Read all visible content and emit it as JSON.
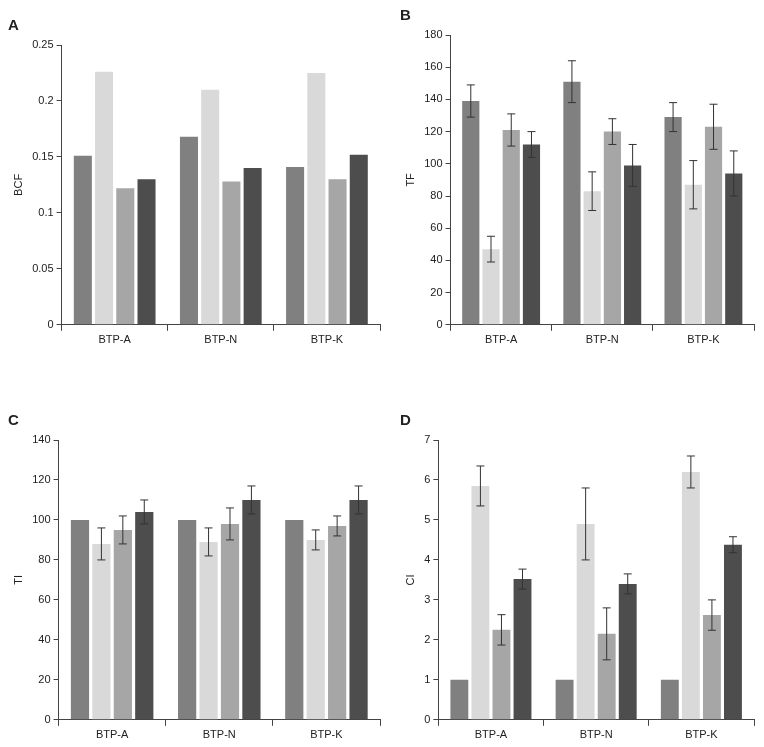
{
  "chart_data": [
    {
      "type": "bar",
      "title": "A",
      "y_label": "BCF",
      "categories": [
        "BTP-A",
        "BTP-N",
        "BTP-K"
      ],
      "series": [
        {
          "color": "#808080",
          "values": [
            0.151,
            0.168,
            0.141
          ]
        },
        {
          "color": "#d9d9d9",
          "values": [
            0.226,
            0.21,
            0.225
          ]
        },
        {
          "color": "#a6a6a6",
          "values": [
            0.122,
            0.128,
            0.13
          ]
        },
        {
          "color": "#4d4d4d",
          "values": [
            0.13,
            0.14,
            0.152
          ]
        }
      ],
      "ylim": [
        0,
        0.25
      ],
      "yticks": [
        0,
        0.05,
        0.1,
        0.15,
        0.2,
        0.25
      ],
      "grid": false
    },
    {
      "type": "bar",
      "title": "B",
      "y_label": "TF",
      "categories": [
        "BTP-A",
        "BTP-N",
        "BTP-K"
      ],
      "series": [
        {
          "color": "#808080",
          "values": [
            139,
            151,
            129
          ],
          "errors": [
            10,
            13,
            9
          ]
        },
        {
          "color": "#d9d9d9",
          "values": [
            47,
            83,
            87
          ],
          "errors": [
            8,
            12,
            15
          ]
        },
        {
          "color": "#a6a6a6",
          "values": [
            121,
            120,
            123
          ],
          "errors": [
            10,
            8,
            14
          ]
        },
        {
          "color": "#4d4d4d",
          "values": [
            112,
            99,
            94
          ],
          "errors": [
            8,
            13,
            14
          ]
        }
      ],
      "ylim": [
        0,
        180
      ],
      "yticks": [
        0,
        20,
        40,
        60,
        80,
        100,
        120,
        140,
        160,
        180
      ],
      "grid": false
    },
    {
      "type": "bar",
      "title": "C",
      "y_label": "TI",
      "categories": [
        "BTP-A",
        "BTP-N",
        "BTP-K"
      ],
      "series": [
        {
          "color": "#808080",
          "values": [
            100,
            100,
            100
          ]
        },
        {
          "color": "#d9d9d9",
          "values": [
            88,
            89,
            90
          ],
          "errors": [
            8,
            7,
            5
          ]
        },
        {
          "color": "#a6a6a6",
          "values": [
            95,
            98,
            97
          ],
          "errors": [
            7,
            8,
            5
          ]
        },
        {
          "color": "#4d4d4d",
          "values": [
            104,
            110,
            110
          ],
          "errors": [
            6,
            7,
            7
          ]
        }
      ],
      "ylim": [
        0,
        140
      ],
      "yticks": [
        0,
        20,
        40,
        60,
        80,
        100,
        120,
        140
      ],
      "grid": false
    },
    {
      "type": "bar",
      "title": "D",
      "y_label": "CI",
      "categories": [
        "BTP-A",
        "BTP-N",
        "BTP-K"
      ],
      "series": [
        {
          "color": "#808080",
          "values": [
            1,
            1,
            1
          ]
        },
        {
          "color": "#d9d9d9",
          "values": [
            5.85,
            4.9,
            6.2
          ],
          "errors": [
            0.5,
            0.9,
            0.4
          ]
        },
        {
          "color": "#a6a6a6",
          "values": [
            2.25,
            2.15,
            2.62
          ],
          "errors": [
            0.38,
            0.65,
            0.38
          ]
        },
        {
          "color": "#4d4d4d",
          "values": [
            3.52,
            3.4,
            4.38
          ],
          "errors": [
            0.25,
            0.25,
            0.2
          ]
        }
      ],
      "ylim": [
        0,
        7
      ],
      "yticks": [
        0,
        1,
        2,
        3,
        4,
        5,
        6,
        7
      ],
      "grid": false
    }
  ]
}
